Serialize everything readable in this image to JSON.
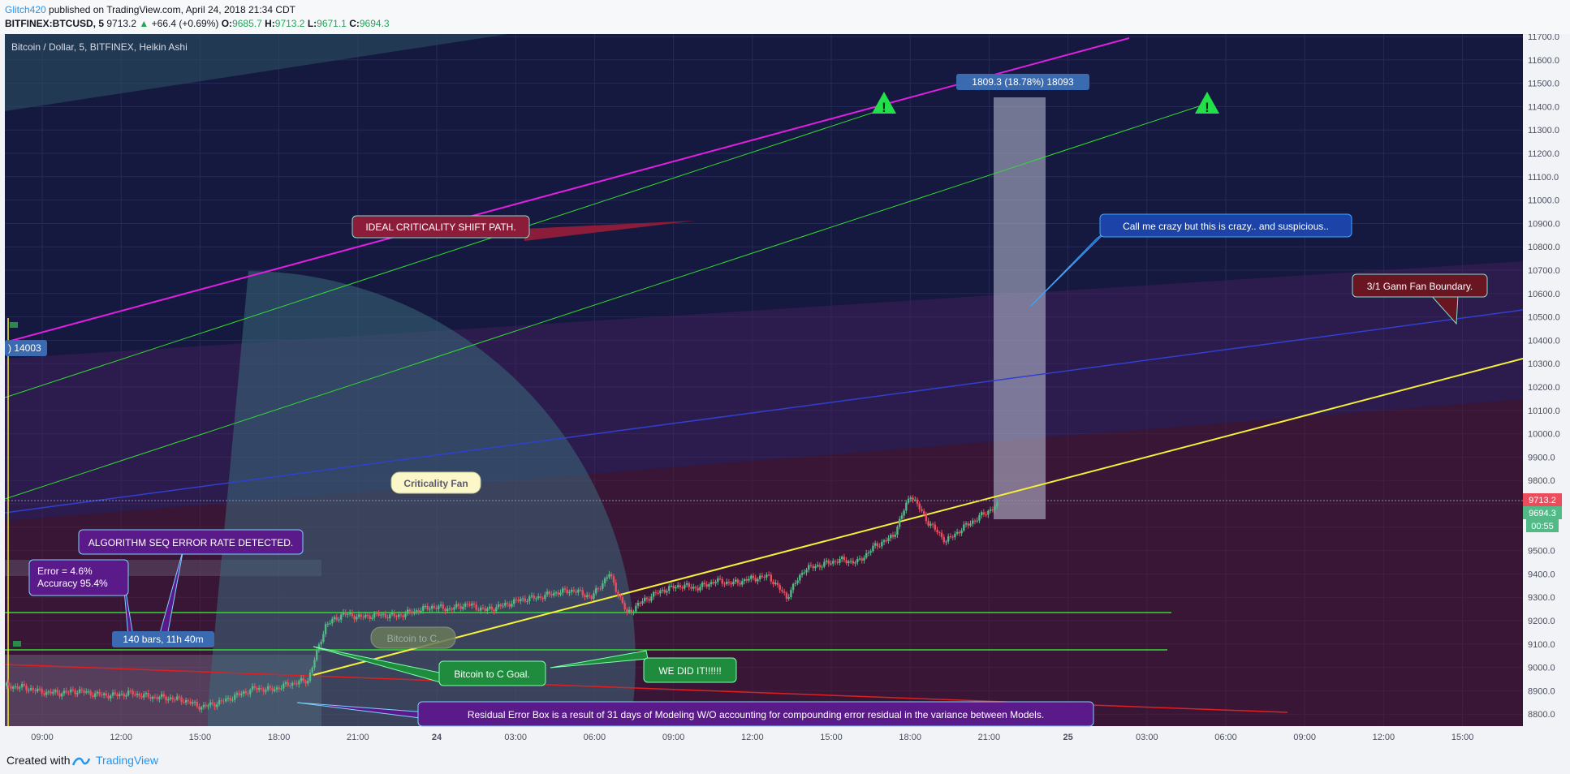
{
  "header": {
    "author": "Glitch420",
    "published": "published on TradingView.com, April 24, 2018 21:34 CDT",
    "symbol": "BITFINEX:BTCUSD, 5",
    "last": "9713.2",
    "change": "+66.4 (+0.69%)",
    "o_label": "O:",
    "o_value": "9685.7",
    "h_label": "H:",
    "h_value": "9713.2",
    "l_label": "L:",
    "l_value": "9671.1",
    "c_label": "C:",
    "c_value": "9694.3"
  },
  "footer": {
    "created": "Created with",
    "brand": "TradingView"
  },
  "colors": {
    "background": "#15183f",
    "candle_up": "#53b987",
    "candle_down": "#eb4d5c",
    "magenta_line": "#e020e0",
    "yellow_line": "#f5f03a",
    "green_line": "#32dc32",
    "red_line": "#e02020"
  },
  "chart_data": {
    "type": "candlestick",
    "title": "Bitcoin / Dollar, 5, BITFINEX, Heikin Ashi",
    "y_ticks": [
      "11700.0",
      "11600.0",
      "11500.0",
      "11400.0",
      "11300.0",
      "11200.0",
      "11100.0",
      "11000.0",
      "10900.0",
      "10800.0",
      "10700.0",
      "10600.0",
      "10500.0",
      "10400.0",
      "10300.0",
      "10200.0",
      "10100.0",
      "10000.0",
      "9900.0",
      "9800.0",
      "9700.0",
      "9600.0",
      "9500.0",
      "9400.0",
      "9300.0",
      "9200.0",
      "9100.0",
      "9000.0",
      "8900.0",
      "8800.0"
    ],
    "x_ticks": [
      "09:00",
      "12:00",
      "15:00",
      "18:00",
      "21:00",
      "24",
      "03:00",
      "06:00",
      "09:00",
      "12:00",
      "15:00",
      "18:00",
      "21:00",
      "25",
      "03:00",
      "06:00",
      "09:00",
      "12:00",
      "15:00"
    ],
    "price_labels": {
      "last": "9713.2",
      "close": "9694.3",
      "timer": "00:55"
    },
    "ylim": [
      8800,
      11700
    ],
    "price_path": [
      {
        "t": 0,
        "p": 8920
      },
      {
        "t": 1,
        "p": 8915
      },
      {
        "t": 2,
        "p": 8895
      },
      {
        "t": 3,
        "p": 8890
      },
      {
        "t": 4,
        "p": 8900
      },
      {
        "t": 5,
        "p": 8885
      },
      {
        "t": 6,
        "p": 8880
      },
      {
        "t": 7,
        "p": 8890
      },
      {
        "t": 8,
        "p": 8875
      },
      {
        "t": 9,
        "p": 8870
      },
      {
        "t": 10,
        "p": 8860
      },
      {
        "t": 11,
        "p": 8830
      },
      {
        "t": 12,
        "p": 8850
      },
      {
        "t": 13,
        "p": 8880
      },
      {
        "t": 14,
        "p": 8910
      },
      {
        "t": 15,
        "p": 8905
      },
      {
        "t": 16,
        "p": 8930
      },
      {
        "t": 17,
        "p": 8945
      },
      {
        "t": 18,
        "p": 9180
      },
      {
        "t": 19,
        "p": 9230
      },
      {
        "t": 20,
        "p": 9215
      },
      {
        "t": 21,
        "p": 9225
      },
      {
        "t": 22,
        "p": 9220
      },
      {
        "t": 23,
        "p": 9240
      },
      {
        "t": 24,
        "p": 9260
      },
      {
        "t": 25,
        "p": 9250
      },
      {
        "t": 26,
        "p": 9270
      },
      {
        "t": 27,
        "p": 9245
      },
      {
        "t": 28,
        "p": 9265
      },
      {
        "t": 29,
        "p": 9290
      },
      {
        "t": 30,
        "p": 9300
      },
      {
        "t": 31,
        "p": 9320
      },
      {
        "t": 32,
        "p": 9330
      },
      {
        "t": 33,
        "p": 9300
      },
      {
        "t": 34,
        "p": 9400
      },
      {
        "t": 35,
        "p": 9230
      },
      {
        "t": 36,
        "p": 9290
      },
      {
        "t": 37,
        "p": 9330
      },
      {
        "t": 38,
        "p": 9350
      },
      {
        "t": 39,
        "p": 9340
      },
      {
        "t": 40,
        "p": 9370
      },
      {
        "t": 41,
        "p": 9360
      },
      {
        "t": 42,
        "p": 9380
      },
      {
        "t": 43,
        "p": 9390
      },
      {
        "t": 44,
        "p": 9300
      },
      {
        "t": 45,
        "p": 9420
      },
      {
        "t": 46,
        "p": 9440
      },
      {
        "t": 47,
        "p": 9460
      },
      {
        "t": 48,
        "p": 9450
      },
      {
        "t": 49,
        "p": 9520
      },
      {
        "t": 50,
        "p": 9560
      },
      {
        "t": 51,
        "p": 9740
      },
      {
        "t": 52,
        "p": 9620
      },
      {
        "t": 53,
        "p": 9540
      },
      {
        "t": 54,
        "p": 9600
      },
      {
        "t": 55,
        "p": 9650
      },
      {
        "t": 56,
        "p": 9700
      }
    ],
    "annotations": {
      "measure": "1809.3 (18.78%) 18093",
      "price_left": ") 14003",
      "range_bars": "140 bars, 11h 40m",
      "ideal_path": "IDEAL CRITICALITY SHIFT  PATH.",
      "crazy": "Call me crazy but this is crazy.. and suspicious..",
      "gann": "3/1 Gann Fan Boundary.",
      "criticality_fan": "Criticality Fan",
      "algorithm": "ALGORITHM SEQ ERROR RATE DETECTED.",
      "error_line1": "Error = 4.6%",
      "error_line2": "Accuracy  95.4%",
      "bitcoin_c": "Bitcoin to C.",
      "bitcoin_c_goal": "Bitcoin to C Goal.",
      "we_did_it": "WE DID IT!!!!!!",
      "residual": "Residual Error Box is a result of 31 days of Modeling W/O accounting for compounding error residual in the variance between Models."
    }
  }
}
